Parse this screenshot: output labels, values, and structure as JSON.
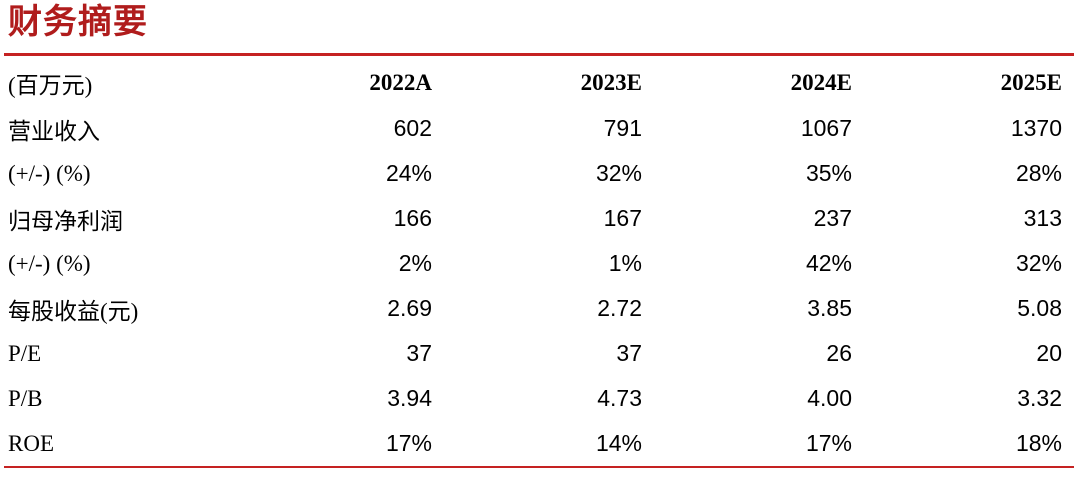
{
  "title": "财务摘要",
  "colors": {
    "title_red": "#b01c1c",
    "line_red": "#c52222",
    "text_black": "#000000",
    "background": "#ffffff"
  },
  "table": {
    "unit_label": "(百万元)",
    "columns": [
      "2022A",
      "2023E",
      "2024E",
      "2025E"
    ],
    "rows": [
      {
        "label": "营业收入",
        "values": [
          "602",
          "791",
          "1067",
          "1370"
        ]
      },
      {
        "label": "(+/-) (%)",
        "values": [
          "24%",
          "32%",
          "35%",
          "28%"
        ]
      },
      {
        "label": "归母净利润",
        "values": [
          "166",
          "167",
          "237",
          "313"
        ]
      },
      {
        "label": "(+/-) (%)",
        "values": [
          "2%",
          "1%",
          "42%",
          "32%"
        ]
      },
      {
        "label": "每股收益(元)",
        "values": [
          "2.69",
          "2.72",
          "3.85",
          "5.08"
        ]
      },
      {
        "label": "P/E",
        "values": [
          "37",
          "37",
          "26",
          "20"
        ]
      },
      {
        "label": "P/B",
        "values": [
          "3.94",
          "4.73",
          "4.00",
          "3.32"
        ]
      },
      {
        "label": "ROE",
        "values": [
          "17%",
          "14%",
          "17%",
          "18%"
        ]
      }
    ]
  }
}
